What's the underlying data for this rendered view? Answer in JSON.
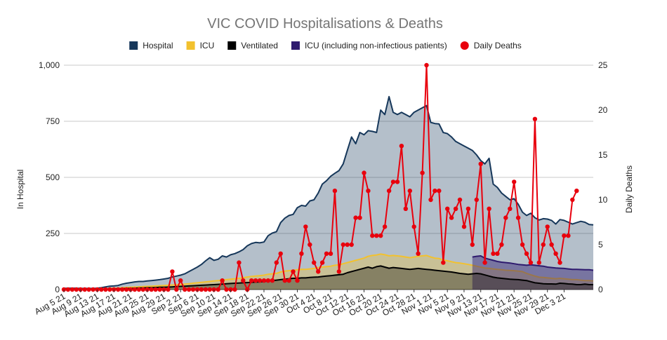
{
  "chart_data": {
    "type": "area",
    "title": "VIC COVID Hospitalisations & Deaths",
    "ylabel_left": "In Hospital",
    "ylabel_right": "Daily Deaths",
    "ylim_left": [
      0,
      1000
    ],
    "ylim_right": [
      0,
      25
    ],
    "yticks_left": [
      "0",
      "250",
      "500",
      "750",
      "1,000"
    ],
    "yticks_right": [
      "0",
      "5",
      "10",
      "15",
      "20",
      "25"
    ],
    "x_tick_labels": [
      "Aug 5 21",
      "Aug 9 21",
      "Aug 13 21",
      "Aug 17 21",
      "Aug 21 21",
      "Aug 25 21",
      "Aug 29 21",
      "Sep 2 21",
      "Sep 6 21",
      "Sep 10 21",
      "Sep 14 21",
      "Sep 18 21",
      "Sep 22 21",
      "Sep 26 21",
      "Sep 30 21",
      "Oct 4 21",
      "Oct 8 21",
      "Oct 12 21",
      "Oct 16 21",
      "Oct 20 21",
      "Oct 24 21",
      "Oct 28 21",
      "Nov 1 21",
      "Nov 5 21",
      "Nov 9 21",
      "Nov 13 21",
      "Nov 17 21",
      "Nov 21 21",
      "Nov 25 21",
      "Nov 29 21",
      "Dec 3 21"
    ],
    "x_start": "Aug 5 21",
    "tick_every_days": 4,
    "legend_position": "top",
    "legend": [
      {
        "name": "Hospital",
        "color": "#16375a",
        "marker": "square"
      },
      {
        "name": "ICU",
        "color": "#f2c12e",
        "marker": "square"
      },
      {
        "name": "Ventilated",
        "color": "#000000",
        "marker": "square"
      },
      {
        "name": "ICU (including non-infectious patients)",
        "color": "#2e1a6e",
        "marker": "square"
      },
      {
        "name": "Daily Deaths",
        "color": "#e8000d",
        "marker": "circle"
      }
    ],
    "series": [
      {
        "name": "Hospital",
        "axis": "left",
        "values": [
          5,
          6,
          6,
          6,
          5,
          5,
          5,
          5,
          6,
          8,
          12,
          15,
          16,
          18,
          24,
          28,
          31,
          34,
          36,
          36,
          38,
          40,
          42,
          44,
          47,
          50,
          56,
          60,
          64,
          70,
          80,
          90,
          100,
          112,
          128,
          142,
          130,
          135,
          150,
          145,
          155,
          160,
          168,
          178,
          195,
          205,
          210,
          208,
          212,
          240,
          252,
          258,
          298,
          318,
          330,
          335,
          365,
          375,
          372,
          395,
          400,
          430,
          470,
          485,
          505,
          518,
          530,
          560,
          620,
          680,
          650,
          700,
          690,
          708,
          705,
          700,
          800,
          780,
          860,
          790,
          780,
          790,
          780,
          770,
          790,
          800,
          810,
          820,
          745,
          740,
          738,
          700,
          695,
          680,
          660,
          650,
          640,
          630,
          620,
          600,
          575,
          560,
          585,
          470,
          455,
          430,
          415,
          400,
          405,
          380,
          345,
          330,
          340,
          320,
          310,
          316,
          314,
          308,
          292,
          312,
          308,
          300,
          292,
          298,
          304,
          300,
          290,
          288
        ]
      },
      {
        "name": "ICU",
        "axis": "left",
        "values": [
          2,
          2,
          2,
          2,
          2,
          2,
          2,
          2,
          2,
          3,
          4,
          5,
          6,
          6,
          8,
          9,
          10,
          11,
          12,
          13,
          14,
          15,
          16,
          17,
          18,
          19,
          20,
          21,
          22,
          24,
          26,
          28,
          30,
          32,
          34,
          36,
          38,
          40,
          42,
          44,
          46,
          48,
          50,
          52,
          56,
          58,
          60,
          62,
          64,
          68,
          70,
          72,
          78,
          82,
          84,
          86,
          88,
          90,
          90,
          92,
          94,
          98,
          100,
          102,
          104,
          108,
          110,
          115,
          120,
          125,
          130,
          135,
          140,
          148,
          152,
          154,
          158,
          155,
          150,
          152,
          150,
          148,
          145,
          142,
          145,
          148,
          150,
          152,
          145,
          140,
          138,
          132,
          128,
          124,
          120,
          118,
          115,
          112,
          108,
          104,
          100,
          96,
          94,
          92,
          90,
          88,
          86,
          85,
          84,
          82,
          80,
          72,
          66,
          60,
          55,
          54,
          52,
          50,
          48,
          50,
          48,
          46,
          44,
          44,
          42,
          40,
          40,
          38
        ]
      },
      {
        "name": "Ventilated",
        "axis": "left",
        "values": [
          1,
          1,
          1,
          1,
          1,
          1,
          1,
          1,
          1,
          1,
          2,
          2,
          3,
          3,
          4,
          5,
          5,
          6,
          7,
          7,
          8,
          8,
          9,
          10,
          10,
          11,
          12,
          13,
          14,
          15,
          16,
          17,
          18,
          19,
          20,
          21,
          22,
          23,
          24,
          26,
          27,
          28,
          29,
          30,
          31,
          32,
          33,
          34,
          36,
          38,
          40,
          42,
          44,
          46,
          48,
          50,
          50,
          52,
          52,
          54,
          55,
          56,
          58,
          60,
          62,
          64,
          66,
          68,
          75,
          80,
          85,
          90,
          95,
          100,
          95,
          102,
          105,
          100,
          95,
          98,
          96,
          94,
          92,
          90,
          92,
          94,
          92,
          90,
          88,
          86,
          84,
          82,
          80,
          78,
          75,
          72,
          70,
          68,
          70,
          72,
          70,
          65,
          60,
          55,
          52,
          50,
          48,
          46,
          45,
          44,
          42,
          40,
          35,
          30,
          28,
          26,
          25,
          25,
          24,
          28,
          27,
          25,
          24,
          22,
          22,
          24,
          22,
          22
        ]
      },
      {
        "name": "ICU (including non-infectious patients)",
        "axis": "left",
        "start_index": 98,
        "values": [
          145,
          148,
          150,
          140,
          135,
          130,
          125,
          122,
          120,
          118,
          115,
          112,
          110,
          108,
          110,
          108,
          106,
          104,
          100,
          98,
          96,
          95,
          94,
          92,
          90,
          90,
          89,
          88,
          88,
          86
        ]
      },
      {
        "name": "Daily Deaths",
        "axis": "right",
        "values": [
          0,
          0,
          0,
          0,
          0,
          0,
          0,
          0,
          0,
          0,
          0,
          0,
          0,
          0,
          0,
          0,
          0,
          0,
          0,
          0,
          0,
          0,
          0,
          0,
          0,
          0,
          2,
          0,
          1,
          0,
          0,
          0,
          0,
          0,
          0,
          0,
          0,
          0,
          1,
          0,
          0,
          0,
          3,
          1,
          0,
          1,
          1,
          1,
          1,
          1,
          1,
          3,
          4,
          1,
          1,
          2,
          1,
          4,
          7,
          5,
          3,
          2,
          3,
          4,
          4,
          11,
          2,
          5,
          5,
          5,
          8,
          8,
          13,
          11,
          6,
          6,
          6,
          7,
          11,
          12,
          12,
          16,
          9,
          11,
          7,
          4,
          13,
          25,
          10,
          11,
          11,
          3,
          9,
          8,
          9,
          10,
          7,
          9,
          5,
          10,
          14,
          3,
          9,
          4,
          4,
          5,
          8,
          9,
          12,
          8,
          5,
          4,
          3,
          19,
          3,
          5,
          7,
          5,
          4,
          3,
          6,
          6,
          10,
          11
        ]
      }
    ]
  }
}
